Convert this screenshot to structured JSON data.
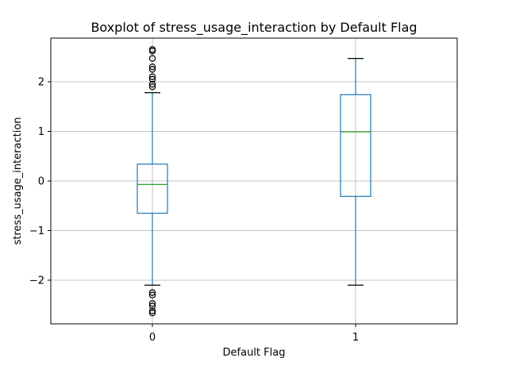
{
  "chart_data": {
    "type": "boxplot",
    "title": "Boxplot of stress_usage_interaction by Default Flag",
    "xlabel": "Default Flag",
    "ylabel": "stress_usage_interaction",
    "categories": [
      "0",
      "1"
    ],
    "ylim": [
      -2.88,
      2.88
    ],
    "yticks": [
      -2,
      -1,
      0,
      1,
      2
    ],
    "ytick_labels": [
      "−2",
      "−1",
      "0",
      "1",
      "2"
    ],
    "grid": true,
    "boxes": [
      {
        "category": "0",
        "whisker_low": -2.1,
        "q1": -0.65,
        "median": -0.07,
        "q3": 0.34,
        "whisker_high": 1.78,
        "outliers": [
          1.9,
          1.95,
          2.05,
          2.1,
          2.25,
          2.3,
          2.47,
          2.62,
          2.65,
          -2.25,
          -2.3,
          -2.47,
          -2.52,
          -2.62,
          -2.66
        ]
      },
      {
        "category": "1",
        "whisker_low": -2.1,
        "q1": -0.31,
        "median": 0.99,
        "q3": 1.74,
        "whisker_high": 2.47,
        "outliers": []
      }
    ],
    "colors": {
      "box": "#1f77b4",
      "median": "#2ca02c",
      "cap": "#000000",
      "grid": "#b0b0b0",
      "outlier": "#000000"
    }
  }
}
